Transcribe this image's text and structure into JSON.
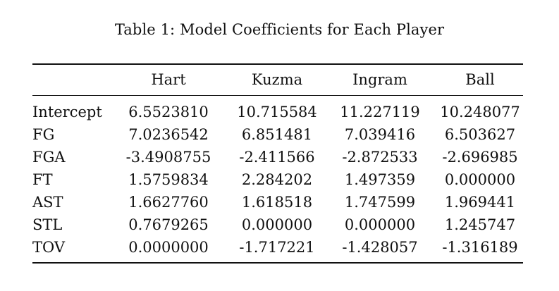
{
  "caption": "Table 1: Model Coefficients for Each Player",
  "table": {
    "columns": [
      "Hart",
      "Kuzma",
      "Ingram",
      "Ball"
    ],
    "rows": [
      {
        "label": "Intercept",
        "values": [
          "6.5523810",
          "10.715584",
          "11.227119",
          "10.248077"
        ]
      },
      {
        "label": "FG",
        "values": [
          "7.0236542",
          "6.851481",
          "7.039416",
          "6.503627"
        ]
      },
      {
        "label": "FGA",
        "values": [
          "-3.4908755",
          "-2.411566",
          "-2.872533",
          "-2.696985"
        ]
      },
      {
        "label": "FT",
        "values": [
          "1.5759834",
          "2.284202",
          "1.497359",
          "0.000000"
        ]
      },
      {
        "label": "AST",
        "values": [
          "1.6627760",
          "1.618518",
          "1.747599",
          "1.969441"
        ]
      },
      {
        "label": "STL",
        "values": [
          "0.7679265",
          "0.000000",
          "0.000000",
          "1.245747"
        ]
      },
      {
        "label": "TOV",
        "values": [
          "0.0000000",
          "-1.717221",
          "-1.428057",
          "-1.316189"
        ]
      }
    ]
  }
}
